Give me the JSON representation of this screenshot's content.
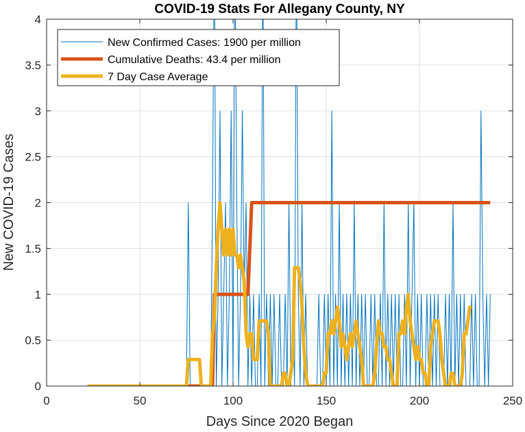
{
  "chart_data": {
    "type": "line",
    "title": "COVID-19 Stats For Allegany County, NY",
    "xlabel": "Days Since 2020 Began",
    "ylabel": "New COVID-19 Cases",
    "xlim": [
      0,
      250
    ],
    "ylim": [
      0,
      4
    ],
    "xticks": [
      0,
      50,
      100,
      150,
      200,
      250
    ],
    "yticks": [
      0,
      0.5,
      1,
      1.5,
      2,
      2.5,
      3,
      3.5,
      4
    ],
    "xtick_labels": [
      "0",
      "50",
      "100",
      "150",
      "200",
      "250"
    ],
    "ytick_labels": [
      "0",
      "0.5",
      "1",
      "1.5",
      "2",
      "2.5",
      "3",
      "3.5",
      "4"
    ],
    "grid": true,
    "legend_position": "top-left",
    "series": [
      {
        "name": "New Confirmed Cases: 1900 per million",
        "color": "#0072BD",
        "style": "thin",
        "points": [
          [
            22,
            0
          ],
          [
            75,
            0
          ],
          [
            76,
            2
          ],
          [
            77,
            0
          ],
          [
            88,
            0
          ],
          [
            89,
            2
          ],
          [
            90,
            5
          ],
          [
            91,
            0
          ],
          [
            92,
            1
          ],
          [
            93,
            3
          ],
          [
            94,
            0
          ],
          [
            95,
            1
          ],
          [
            96,
            2
          ],
          [
            97,
            0
          ],
          [
            98,
            1
          ],
          [
            99,
            3
          ],
          [
            100,
            0
          ],
          [
            101,
            5
          ],
          [
            102,
            2
          ],
          [
            103,
            0
          ],
          [
            104,
            1
          ],
          [
            105,
            3
          ],
          [
            106,
            1
          ],
          [
            107,
            2
          ],
          [
            108,
            0
          ],
          [
            109,
            1
          ],
          [
            110,
            0
          ],
          [
            111,
            1
          ],
          [
            112,
            0
          ],
          [
            113,
            0
          ],
          [
            114,
            1
          ],
          [
            115,
            0
          ],
          [
            116,
            5
          ],
          [
            117,
            0
          ],
          [
            118,
            1
          ],
          [
            119,
            0
          ],
          [
            120,
            1
          ],
          [
            121,
            0
          ],
          [
            122,
            1
          ],
          [
            123,
            0
          ],
          [
            124,
            0
          ],
          [
            125,
            1
          ],
          [
            126,
            0
          ],
          [
            127,
            0
          ],
          [
            128,
            1
          ],
          [
            129,
            0
          ],
          [
            130,
            2
          ],
          [
            131,
            0
          ],
          [
            132,
            1
          ],
          [
            133,
            0
          ],
          [
            134,
            5
          ],
          [
            135,
            1
          ],
          [
            136,
            0
          ],
          [
            137,
            2
          ],
          [
            138,
            0
          ],
          [
            139,
            1
          ],
          [
            140,
            0
          ],
          [
            141,
            0
          ],
          [
            142,
            0
          ],
          [
            143,
            0
          ],
          [
            144,
            0
          ],
          [
            145,
            0
          ],
          [
            146,
            1
          ],
          [
            147,
            0
          ],
          [
            148,
            0
          ],
          [
            149,
            1
          ],
          [
            150,
            0
          ],
          [
            151,
            1
          ],
          [
            152,
            0
          ],
          [
            153,
            3
          ],
          [
            154,
            0
          ],
          [
            155,
            1
          ],
          [
            156,
            0
          ],
          [
            157,
            2
          ],
          [
            158,
            0
          ],
          [
            159,
            1
          ],
          [
            160,
            0
          ],
          [
            161,
            1
          ],
          [
            162,
            0
          ],
          [
            163,
            1
          ],
          [
            164,
            0
          ],
          [
            165,
            2
          ],
          [
            166,
            0
          ],
          [
            167,
            1
          ],
          [
            168,
            0
          ],
          [
            169,
            1
          ],
          [
            170,
            0
          ],
          [
            171,
            1
          ],
          [
            172,
            0
          ],
          [
            173,
            0
          ],
          [
            174,
            1
          ],
          [
            175,
            0
          ],
          [
            176,
            1
          ],
          [
            177,
            0
          ],
          [
            178,
            0
          ],
          [
            179,
            1
          ],
          [
            180,
            0
          ],
          [
            181,
            2
          ],
          [
            182,
            0
          ],
          [
            183,
            1
          ],
          [
            184,
            0
          ],
          [
            185,
            1
          ],
          [
            186,
            0
          ],
          [
            187,
            1
          ],
          [
            188,
            0
          ],
          [
            189,
            1
          ],
          [
            190,
            0
          ],
          [
            191,
            0
          ],
          [
            192,
            1
          ],
          [
            193,
            0
          ],
          [
            194,
            2
          ],
          [
            195,
            0
          ],
          [
            196,
            1
          ],
          [
            197,
            2
          ],
          [
            198,
            0
          ],
          [
            199,
            1
          ],
          [
            200,
            0
          ],
          [
            201,
            1
          ],
          [
            202,
            0
          ],
          [
            203,
            0
          ],
          [
            204,
            1
          ],
          [
            205,
            0
          ],
          [
            206,
            1
          ],
          [
            207,
            0
          ],
          [
            208,
            1
          ],
          [
            209,
            0
          ],
          [
            210,
            1
          ],
          [
            211,
            0
          ],
          [
            212,
            0
          ],
          [
            213,
            0
          ],
          [
            214,
            1
          ],
          [
            215,
            0
          ],
          [
            216,
            1
          ],
          [
            217,
            0
          ],
          [
            218,
            2
          ],
          [
            219,
            0
          ],
          [
            220,
            1
          ],
          [
            221,
            0
          ],
          [
            222,
            1
          ],
          [
            223,
            0
          ],
          [
            224,
            1
          ],
          [
            225,
            0
          ],
          [
            226,
            0
          ],
          [
            227,
            0
          ],
          [
            228,
            1
          ],
          [
            229,
            0
          ],
          [
            230,
            1
          ],
          [
            231,
            0
          ],
          [
            232,
            0
          ],
          [
            233,
            3
          ],
          [
            234,
            1
          ],
          [
            235,
            0
          ],
          [
            236,
            1
          ],
          [
            237,
            0
          ],
          [
            238,
            1
          ]
        ]
      },
      {
        "name": "Cumulative Deaths: 43.4 per million",
        "color": "#D95319",
        "style": "thick",
        "points": [
          [
            22,
            0
          ],
          [
            89,
            0
          ],
          [
            90,
            1
          ],
          [
            108,
            1
          ],
          [
            110,
            2
          ],
          [
            238,
            2
          ]
        ]
      },
      {
        "name": "7 Day Case Average",
        "color": "#EDB120",
        "style": "thick",
        "points": [
          [
            22,
            0
          ],
          [
            75,
            0
          ],
          [
            76,
            0.29
          ],
          [
            82,
            0.29
          ],
          [
            83,
            0
          ],
          [
            88,
            0
          ],
          [
            89,
            0.57
          ],
          [
            90,
            0.71
          ],
          [
            91,
            1.29
          ],
          [
            92,
            1.71
          ],
          [
            93,
            2.0
          ],
          [
            94,
            1.71
          ],
          [
            95,
            1.43
          ],
          [
            96,
            1.71
          ],
          [
            97,
            1.43
          ],
          [
            98,
            1.71
          ],
          [
            99,
            1.43
          ],
          [
            100,
            1.71
          ],
          [
            101,
            1.43
          ],
          [
            102,
            1.43
          ],
          [
            103,
            1.29
          ],
          [
            104,
            1.43
          ],
          [
            105,
            1.29
          ],
          [
            106,
            1.14
          ],
          [
            107,
            0.57
          ],
          [
            108,
            0.43
          ],
          [
            109,
            0.57
          ],
          [
            110,
            0.57
          ],
          [
            111,
            0.29
          ],
          [
            112,
            0.29
          ],
          [
            113,
            0.29
          ],
          [
            114,
            0.71
          ],
          [
            118,
            0.71
          ],
          [
            119,
            0.57
          ],
          [
            120,
            0
          ],
          [
            126,
            0
          ],
          [
            127,
            0.14
          ],
          [
            128,
            0.14
          ],
          [
            129,
            0
          ],
          [
            130,
            0
          ],
          [
            132,
            0.29
          ],
          [
            133,
            1.29
          ],
          [
            135,
            1.29
          ],
          [
            136,
            1.14
          ],
          [
            137,
            0.86
          ],
          [
            138,
            0.43
          ],
          [
            139,
            0.14
          ],
          [
            140,
            0
          ],
          [
            148,
            0
          ],
          [
            149,
            0.14
          ],
          [
            150,
            0.14
          ],
          [
            151,
            0.57
          ],
          [
            152,
            0.57
          ],
          [
            153,
            0.71
          ],
          [
            154,
            0.57
          ],
          [
            155,
            0.71
          ],
          [
            156,
            0.86
          ],
          [
            157,
            0.71
          ],
          [
            158,
            0.43
          ],
          [
            159,
            0.57
          ],
          [
            160,
            0.43
          ],
          [
            161,
            0.29
          ],
          [
            162,
            0.43
          ],
          [
            163,
            0.57
          ],
          [
            164,
            0.43
          ],
          [
            165,
            0.57
          ],
          [
            166,
            0.71
          ],
          [
            167,
            0.57
          ],
          [
            168,
            0.43
          ],
          [
            169,
            0.29
          ],
          [
            170,
            0
          ],
          [
            175,
            0
          ],
          [
            176,
            0.14
          ],
          [
            177,
            0.43
          ],
          [
            178,
            0.71
          ],
          [
            179,
            0.57
          ],
          [
            180,
            0.57
          ],
          [
            181,
            0.43
          ],
          [
            182,
            0.43
          ],
          [
            183,
            0.29
          ],
          [
            184,
            0.29
          ],
          [
            185,
            0.14
          ],
          [
            186,
            0
          ],
          [
            188,
            0
          ],
          [
            189,
            0.57
          ],
          [
            190,
            0.57
          ],
          [
            191,
            0.71
          ],
          [
            192,
            0.57
          ],
          [
            193,
            0.86
          ],
          [
            194,
            1.0
          ],
          [
            195,
            0.71
          ],
          [
            196,
            0.57
          ],
          [
            197,
            0.43
          ],
          [
            198,
            0.29
          ],
          [
            199,
            0.43
          ],
          [
            200,
            0.29
          ],
          [
            201,
            0.29
          ],
          [
            202,
            0.14
          ],
          [
            203,
            0.14
          ],
          [
            204,
            0
          ],
          [
            205,
            0
          ],
          [
            206,
            0.43
          ],
          [
            207,
            0.57
          ],
          [
            208,
            0.71
          ],
          [
            210,
            0.71
          ],
          [
            211,
            0.57
          ],
          [
            212,
            0.29
          ],
          [
            213,
            0.14
          ],
          [
            214,
            0
          ],
          [
            216,
            0
          ],
          [
            217,
            0.14
          ],
          [
            218,
            0.14
          ],
          [
            219,
            0
          ],
          [
            222,
            0
          ],
          [
            223,
            0.14
          ],
          [
            224,
            0.57
          ],
          [
            225,
            0.57
          ],
          [
            226,
            0.71
          ],
          [
            227,
            0.86
          ],
          [
            228,
            0.86
          ]
        ]
      }
    ]
  }
}
